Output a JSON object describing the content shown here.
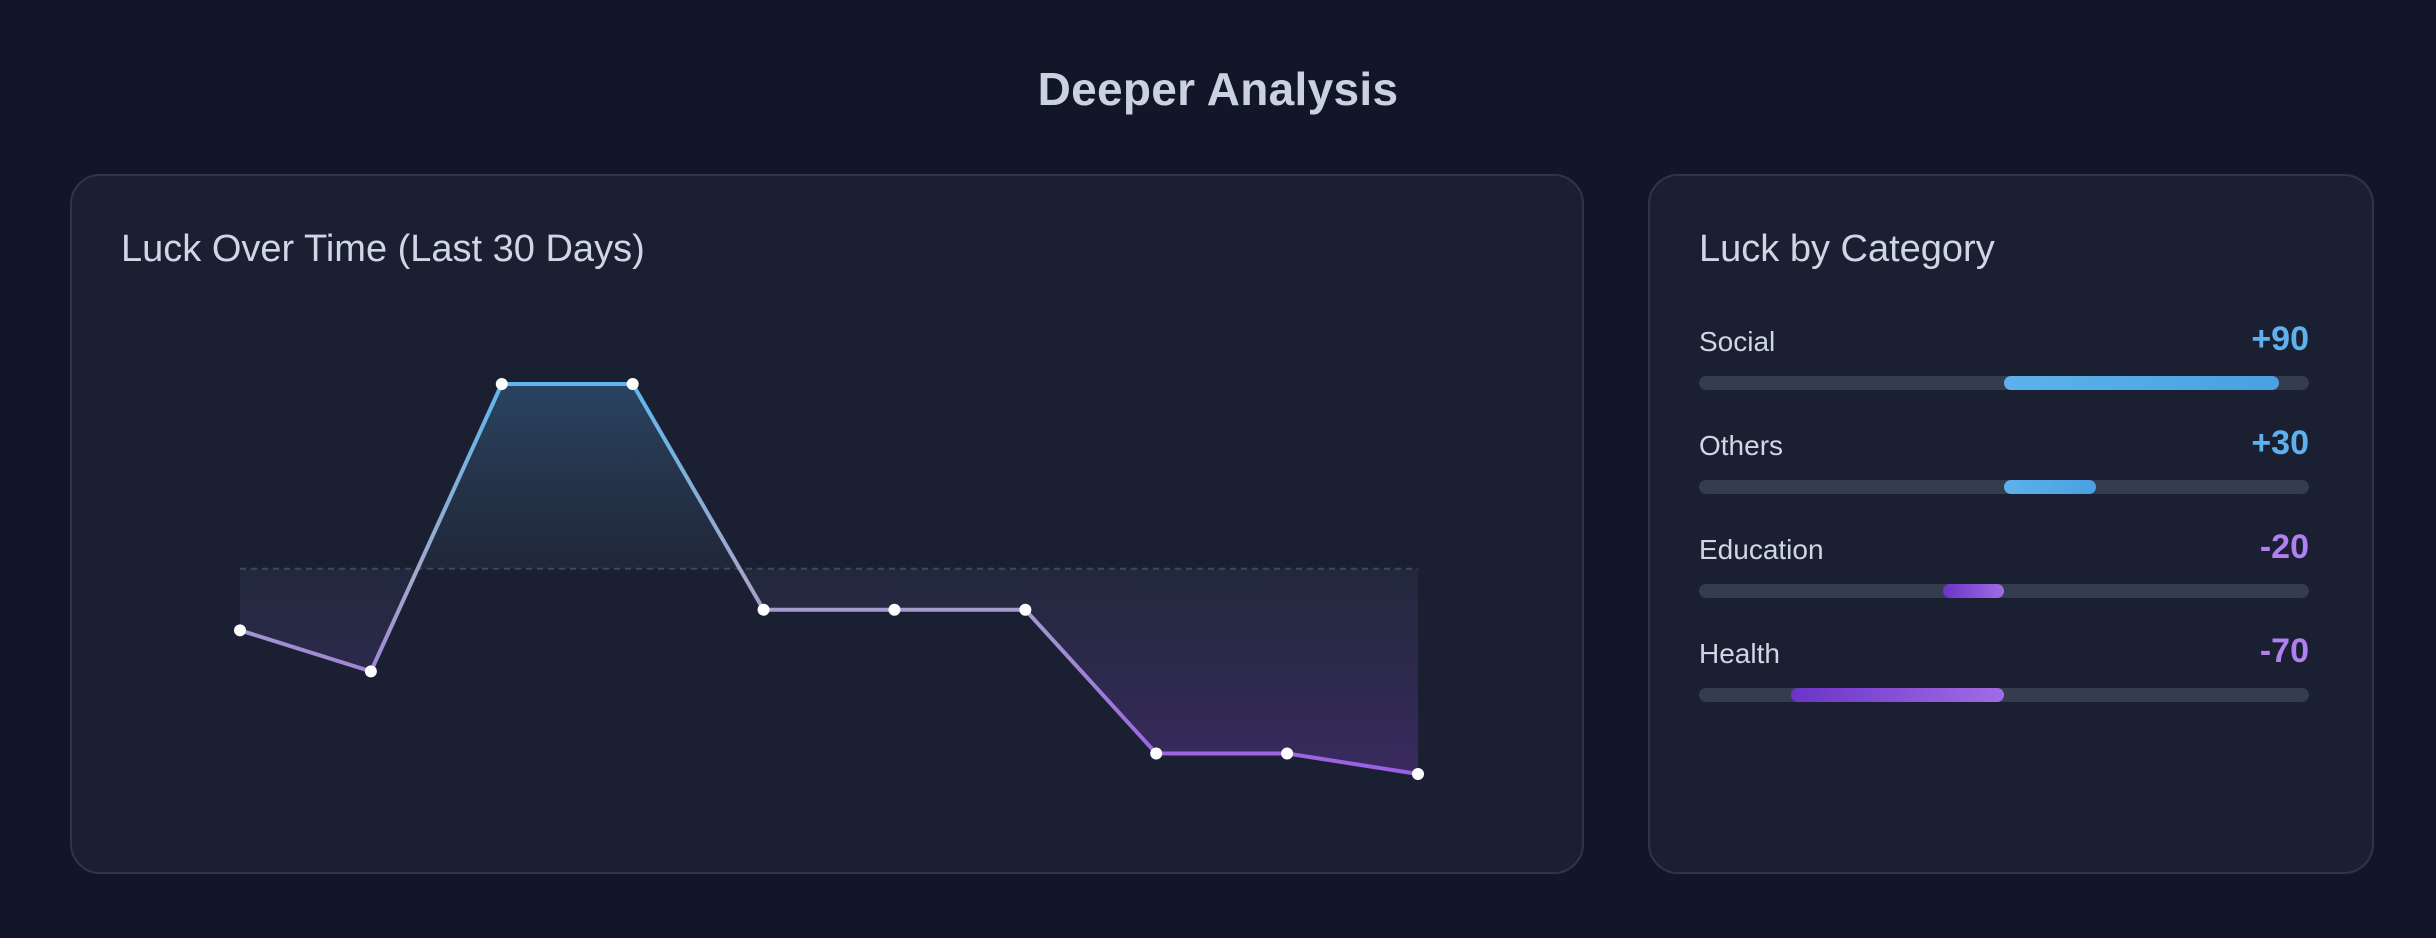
{
  "page": {
    "title": "Deeper Analysis"
  },
  "colors": {
    "positive": "#5db2ec",
    "negative": "#a06de6",
    "positive_text": "#5eb0ee",
    "negative_text": "#b07ff0"
  },
  "left_card": {
    "title": "Luck Over Time (Last 30 Days)"
  },
  "right_card": {
    "title": "Luck by Category"
  },
  "chart_data": [
    {
      "type": "line",
      "title": "Luck Over Time (Last 30 Days)",
      "x": [
        1,
        2,
        3,
        4,
        5,
        6,
        7,
        8,
        9,
        10
      ],
      "values": [
        -30,
        -50,
        90,
        90,
        -20,
        -20,
        -20,
        -90,
        -90,
        -100
      ],
      "baseline": 0,
      "ylim": [
        -100,
        90
      ],
      "grid": false,
      "fill": "area-to-baseline"
    },
    {
      "type": "bar",
      "title": "Luck by Category",
      "orientation": "horizontal-diverging",
      "categories": [
        "Social",
        "Others",
        "Education",
        "Health"
      ],
      "values": [
        90,
        30,
        -20,
        -70
      ],
      "labels": [
        "+90",
        "+30",
        "-20",
        "-70"
      ],
      "xlim": [
        -100,
        100
      ]
    }
  ]
}
